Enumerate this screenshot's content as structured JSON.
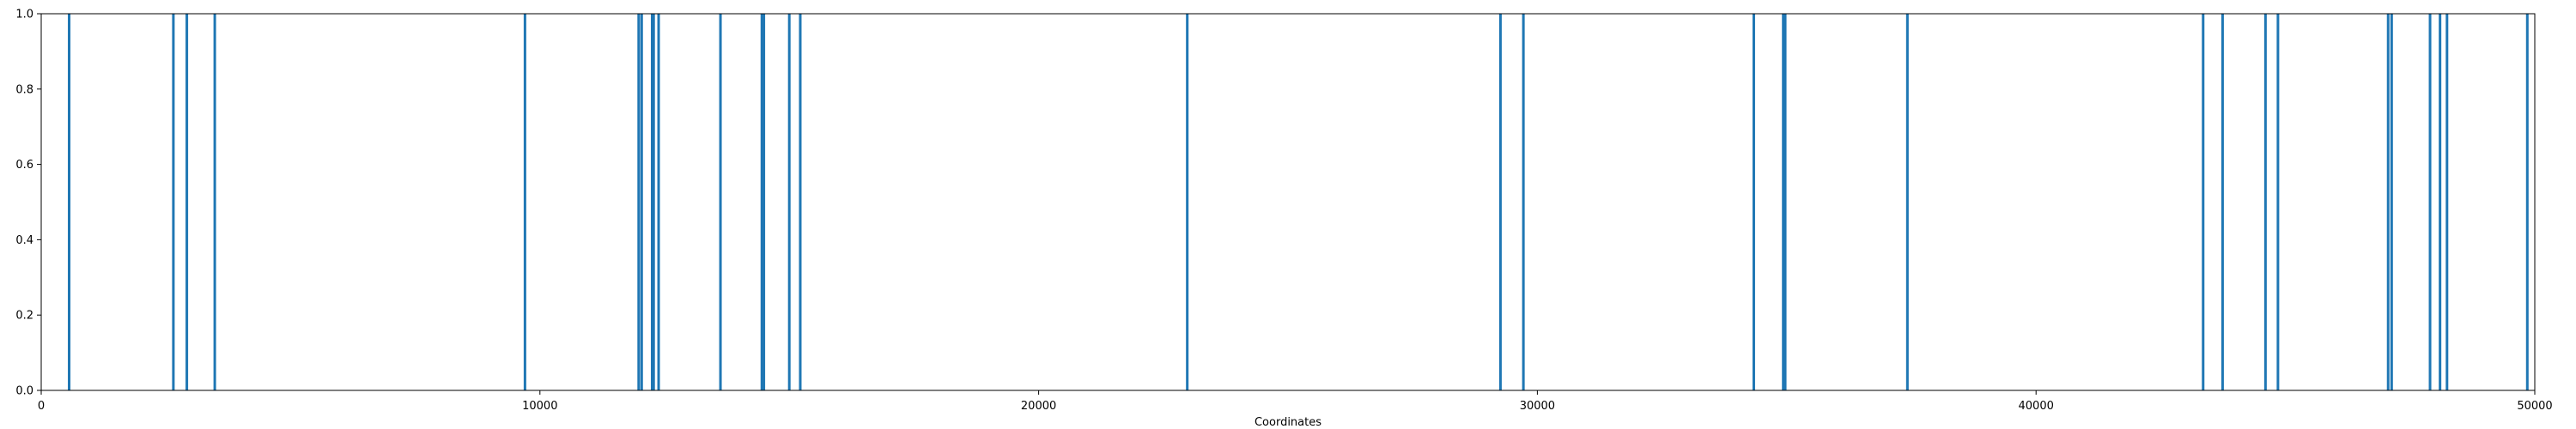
{
  "chart_data": {
    "type": "bar",
    "title": "",
    "xlabel": "Coordinates",
    "ylabel": "",
    "xlim": [
      0,
      50000
    ],
    "ylim": [
      0,
      1.0
    ],
    "x_ticks": [
      0,
      10000,
      20000,
      30000,
      40000,
      50000
    ],
    "x_tick_labels": [
      "0",
      "10000",
      "20000",
      "30000",
      "40000",
      "50000"
    ],
    "y_ticks": [
      0.0,
      0.2,
      0.4,
      0.6,
      0.8,
      1.0
    ],
    "y_tick_labels": [
      "0.0",
      "0.2",
      "0.4",
      "0.6",
      "0.8",
      "1.0"
    ],
    "grid": false,
    "legend": "none",
    "bar_color": "#1f77b4",
    "series": [
      {
        "x": [
          560,
          2650,
          2920,
          3480,
          9700,
          11980,
          12040,
          12250,
          12280,
          12380,
          13620,
          14450,
          14490,
          15000,
          15220,
          22980,
          29260,
          29720,
          34340,
          34930,
          34970,
          37420,
          43350,
          43740,
          44600,
          44850,
          47060,
          47130,
          47900,
          48100,
          48240,
          49850
        ],
        "values": [
          1,
          1,
          1,
          1,
          1,
          1,
          1,
          1,
          1,
          1,
          1,
          1,
          1,
          1,
          1,
          1,
          1,
          1,
          1,
          1,
          1,
          1,
          1,
          1,
          1,
          1,
          1,
          1,
          1,
          1,
          1,
          1
        ]
      }
    ]
  }
}
